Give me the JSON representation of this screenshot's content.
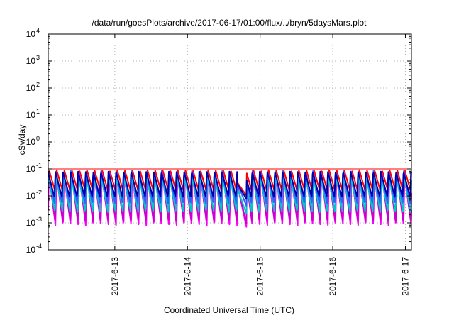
{
  "chart_data": {
    "type": "line",
    "title": "/data/run/goesPlots/archive/2017-06-17/01:00/flux/../bryn/5daysMars.plot",
    "xlabel": "Coordinated Universal Time (UTC)",
    "ylabel": "cSv/day",
    "yscale": "log",
    "ylim": [
      0.0001,
      10000
    ],
    "y_ticks": [
      {
        "value": 0.0001,
        "base": "10",
        "exp": "-4"
      },
      {
        "value": 0.001,
        "base": "10",
        "exp": "-3"
      },
      {
        "value": 0.01,
        "base": "10",
        "exp": "-2"
      },
      {
        "value": 0.1,
        "base": "10",
        "exp": "-1"
      },
      {
        "value": 1,
        "base": "10",
        "exp": "0"
      },
      {
        "value": 10,
        "base": "10",
        "exp": "1"
      },
      {
        "value": 100,
        "base": "10",
        "exp": "2"
      },
      {
        "value": 1000,
        "base": "10",
        "exp": "3"
      },
      {
        "value": 10000,
        "base": "10",
        "exp": "4"
      }
    ],
    "xlim": [
      "2017-06-12 02:00",
      "2017-06-17 02:00"
    ],
    "x_ticks": [
      {
        "value": "2017-06-13 00:00",
        "label": "2017-6-13"
      },
      {
        "value": "2017-06-14 00:00",
        "label": "2017-6-14"
      },
      {
        "value": "2017-06-15 00:00",
        "label": "2017-6-15"
      },
      {
        "value": "2017-06-16 00:00",
        "label": "2017-6-16"
      },
      {
        "value": "2017-06-17 00:00",
        "label": "2017-6-17"
      }
    ],
    "grid": true,
    "grid_style": "dotted",
    "reference_line": {
      "value": 0.1,
      "color": "#ff0000"
    },
    "sawtooth_peak_interval_hours": 2.5,
    "dropout_interval": [
      "2017-06-14 16:30",
      "2017-06-14 19:30"
    ],
    "series": [
      {
        "color": "#ff0000",
        "peak": 0.09,
        "trough": 0.012
      },
      {
        "color": "#ff00ff",
        "peak": 0.075,
        "trough": 0.0008
      },
      {
        "color": "#cc00cc",
        "peak": 0.07,
        "trough": 0.0011
      },
      {
        "color": "#00c8c8",
        "peak": 0.055,
        "trough": 0.0025
      },
      {
        "color": "#3060ff",
        "peak": 0.085,
        "trough": 0.005
      },
      {
        "color": "#0000aa",
        "peak": 0.08,
        "trough": 0.009
      }
    ]
  }
}
